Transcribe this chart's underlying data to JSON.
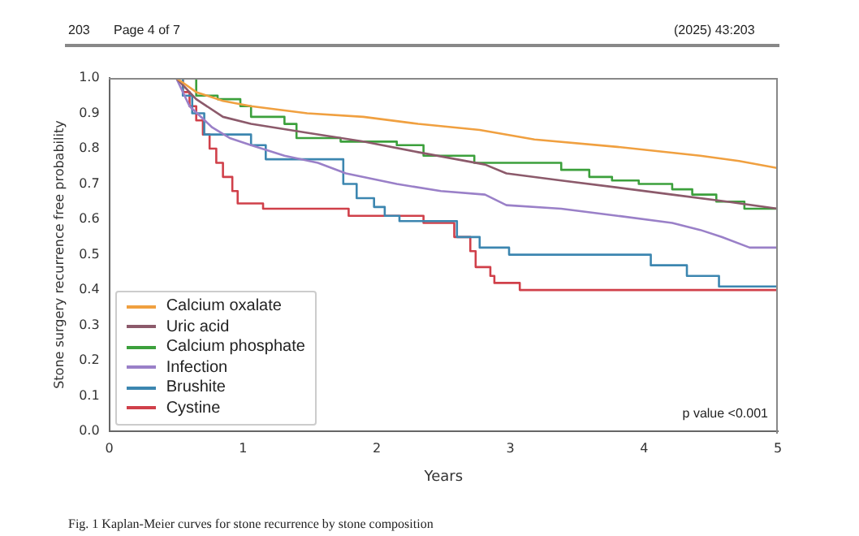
{
  "chart_data": {
    "type": "line",
    "xlabel": "Years",
    "ylabel": "Stone surgery recurrence free probability",
    "xlim": [
      0,
      5
    ],
    "xticks": [
      0,
      1,
      2,
      3,
      4,
      5
    ],
    "ylim": [
      0,
      1
    ],
    "yticks": [
      {
        "value": 0,
        "label": "0.0"
      },
      0.1,
      0.2,
      0.3,
      0.4,
      0.5,
      0.6,
      0.7,
      0.8,
      0.9,
      {
        "value": 1,
        "label": "1.0"
      }
    ],
    "grid": false,
    "legend": "bottom left",
    "marker": "none",
    "line_style": "solid",
    "annotations": [
      "203",
      "Page 4 of 7",
      "(2025) 43:203",
      "p value <0.001",
      "Fig. 1 Kaplan-Meier curves for stone recurrence by stone composition"
    ],
    "series": [
      {
        "name": "Calcium oxalate",
        "color": "#f0a040",
        "type": "line",
        "x": [
          0.5,
          0.65,
          0.85,
          1.06,
          1.48,
          1.9,
          2.31,
          2.77,
          3.18,
          3.8,
          4.42,
          4.71,
          5
        ],
        "values": [
          1,
          0.96,
          0.935,
          0.92,
          0.9,
          0.89,
          0.87,
          0.853,
          0.826,
          0.805,
          0.78,
          0.765,
          0.745
        ]
      },
      {
        "name": "Uric acid",
        "color": "#8c5a6b",
        "type": "line",
        "x": [
          0.5,
          0.65,
          0.85,
          1.06,
          1.48,
          1.9,
          2.31,
          2.81,
          2.97,
          3.38,
          3.8,
          4.21,
          4.62,
          5
        ],
        "values": [
          1,
          0.94,
          0.89,
          0.87,
          0.845,
          0.82,
          0.79,
          0.755,
          0.73,
          0.71,
          0.69,
          0.67,
          0.65,
          0.63
        ]
      },
      {
        "name": "Calcium phosphate",
        "color": "#3ca03c",
        "type": "step",
        "x": [
          0.5,
          0.65,
          0.81,
          0.98,
          1.06,
          1.31,
          1.4,
          1.73,
          2.15,
          2.35,
          2.73,
          3.38,
          3.59,
          3.76,
          3.96,
          4.21,
          4.36,
          4.54,
          4.75,
          5
        ],
        "values": [
          1,
          0.95,
          0.94,
          0.92,
          0.89,
          0.87,
          0.83,
          0.82,
          0.81,
          0.78,
          0.76,
          0.74,
          0.72,
          0.71,
          0.7,
          0.685,
          0.67,
          0.65,
          0.63,
          0.63
        ]
      },
      {
        "name": "Infection",
        "color": "#9a80c8",
        "type": "line",
        "x": [
          0.5,
          0.6,
          0.77,
          0.9,
          1.06,
          1.31,
          1.56,
          1.77,
          2.15,
          2.48,
          2.81,
          2.97,
          3.38,
          3.8,
          4.21,
          4.42,
          4.58,
          4.79,
          5
        ],
        "values": [
          1,
          0.92,
          0.86,
          0.83,
          0.81,
          0.78,
          0.76,
          0.73,
          0.7,
          0.68,
          0.67,
          0.64,
          0.63,
          0.61,
          0.59,
          0.57,
          0.55,
          0.52,
          0.52
        ]
      },
      {
        "name": "Brushite",
        "color": "#3c86b0",
        "type": "step",
        "x": [
          0.5,
          0.55,
          0.62,
          0.71,
          1.06,
          1.17,
          1.75,
          1.85,
          1.98,
          2.06,
          2.17,
          2.6,
          2.77,
          2.99,
          4.05,
          4.32,
          4.56,
          5
        ],
        "values": [
          1,
          0.95,
          0.9,
          0.84,
          0.81,
          0.77,
          0.7,
          0.66,
          0.635,
          0.61,
          0.595,
          0.55,
          0.52,
          0.5,
          0.47,
          0.44,
          0.41,
          0.41
        ]
      },
      {
        "name": "Cystine",
        "color": "#d0404a",
        "type": "step",
        "x": [
          0.5,
          0.55,
          0.6,
          0.65,
          0.7,
          0.75,
          0.8,
          0.85,
          0.92,
          0.96,
          1.15,
          1.79,
          2.35,
          2.58,
          2.7,
          2.74,
          2.85,
          2.88,
          3.07,
          5
        ],
        "values": [
          1,
          0.96,
          0.92,
          0.88,
          0.84,
          0.8,
          0.76,
          0.72,
          0.68,
          0.645,
          0.63,
          0.61,
          0.59,
          0.55,
          0.51,
          0.465,
          0.44,
          0.42,
          0.4,
          0.4
        ]
      }
    ]
  }
}
